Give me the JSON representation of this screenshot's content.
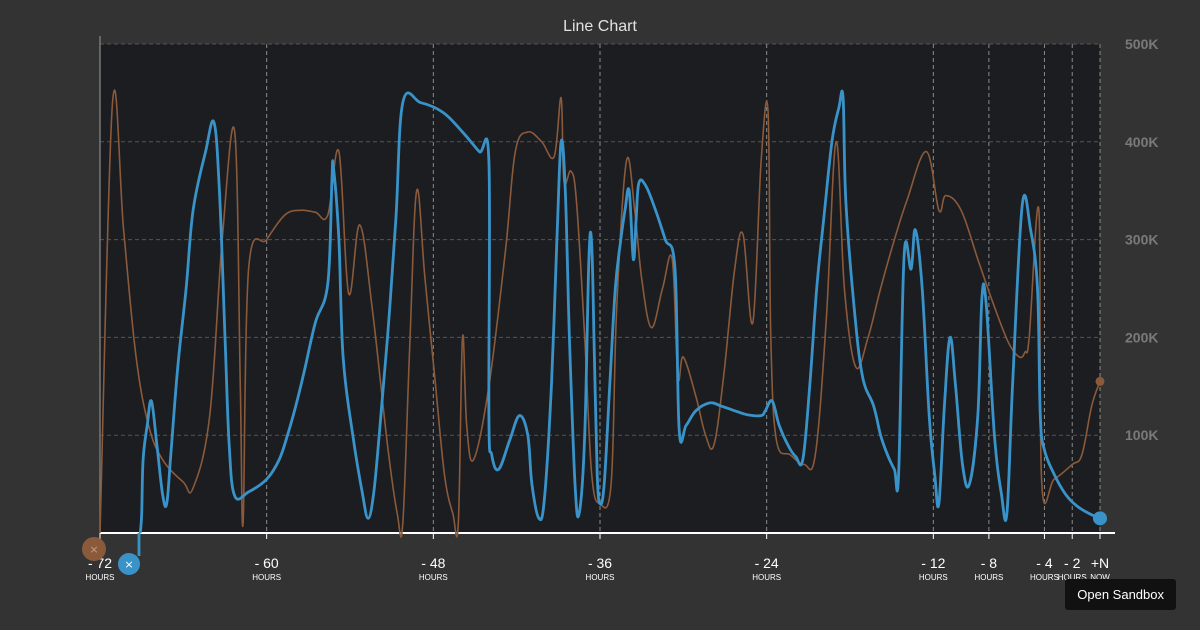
{
  "chart_data": {
    "type": "line",
    "title": "Line Chart",
    "xlabel": "",
    "ylabel": "",
    "xlim": [
      -72,
      0
    ],
    "ylim": [
      0,
      500000
    ],
    "grid": true,
    "y_ticks": [
      {
        "value": 100000,
        "label": "100K"
      },
      {
        "value": 200000,
        "label": "200K"
      },
      {
        "value": 300000,
        "label": "300K"
      },
      {
        "value": 400000,
        "label": "400K"
      },
      {
        "value": 500000,
        "label": "500K"
      }
    ],
    "x_ticks": [
      {
        "value": -72,
        "label": "- 72",
        "sub": "HOURS"
      },
      {
        "value": -60,
        "label": "- 60",
        "sub": "HOURS"
      },
      {
        "value": -48,
        "label": "- 48",
        "sub": "HOURS"
      },
      {
        "value": -36,
        "label": "- 36",
        "sub": "HOURS"
      },
      {
        "value": -24,
        "label": "- 24",
        "sub": "HOURS"
      },
      {
        "value": -12,
        "label": "- 12",
        "sub": "HOURS"
      },
      {
        "value": -8,
        "label": "- 8",
        "sub": "HOURS"
      },
      {
        "value": -4,
        "label": "- 4",
        "sub": "HOURS"
      },
      {
        "value": -2,
        "label": "- 2",
        "sub": "HOURS"
      },
      {
        "value": 0,
        "label": "+N",
        "sub": "NOW"
      }
    ],
    "series": [
      {
        "color": "#8a5a3b",
        "points": [
          [
            -72,
            0
          ],
          [
            -71.1,
            440000
          ],
          [
            -70.3,
            310000
          ],
          [
            -69.4,
            180000
          ],
          [
            -68.5,
            110000
          ],
          [
            -67.5,
            75000
          ],
          [
            -66,
            52000
          ],
          [
            -65.3,
            46000
          ],
          [
            -64.1,
            120000
          ],
          [
            -63.2,
            300000
          ],
          [
            -62.3,
            410000
          ],
          [
            -61.9,
            150000
          ],
          [
            -61.7,
            10000
          ],
          [
            -61.3,
            270000
          ],
          [
            -60,
            300000
          ],
          [
            -58.7,
            325000
          ],
          [
            -57.6,
            330000
          ],
          [
            -56.5,
            328000
          ],
          [
            -55.6,
            325000
          ],
          [
            -54.8,
            390000
          ],
          [
            -54.1,
            245000
          ],
          [
            -53.3,
            315000
          ],
          [
            -52.4,
            230000
          ],
          [
            -51.3,
            90000
          ],
          [
            -50.6,
            20000
          ],
          [
            -50.2,
            10000
          ],
          [
            -49.7,
            190000
          ],
          [
            -49.2,
            350000
          ],
          [
            -48.6,
            260000
          ],
          [
            -47.9,
            160000
          ],
          [
            -47.2,
            60000
          ],
          [
            -46.6,
            20000
          ],
          [
            -46.2,
            10000
          ],
          [
            -45.9,
            200000
          ],
          [
            -45.6,
            110000
          ],
          [
            -45.1,
            75000
          ],
          [
            -44,
            150000
          ],
          [
            -42.8,
            290000
          ],
          [
            -42.1,
            390000
          ],
          [
            -41.2,
            410000
          ],
          [
            -40.2,
            400000
          ],
          [
            -39.3,
            385000
          ],
          [
            -38.8,
            445000
          ],
          [
            -38.6,
            360000
          ],
          [
            -38.1,
            370000
          ],
          [
            -37.7,
            340000
          ],
          [
            -37.1,
            200000
          ],
          [
            -36.6,
            60000
          ],
          [
            -36,
            30000
          ],
          [
            -35.2,
            50000
          ],
          [
            -34.8,
            230000
          ],
          [
            -34.1,
            380000
          ],
          [
            -33.5,
            330000
          ],
          [
            -33,
            260000
          ],
          [
            -32.3,
            210000
          ],
          [
            -31.5,
            250000
          ],
          [
            -30.8,
            280000
          ],
          [
            -30.4,
            160000
          ],
          [
            -30,
            180000
          ],
          [
            -29.1,
            140000
          ],
          [
            -28.4,
            100000
          ],
          [
            -27.8,
            90000
          ],
          [
            -27.1,
            160000
          ],
          [
            -26.3,
            270000
          ],
          [
            -25.7,
            305000
          ],
          [
            -25,
            215000
          ],
          [
            -24.4,
            380000
          ],
          [
            -23.9,
            430000
          ],
          [
            -23.7,
            200000
          ],
          [
            -23.3,
            95000
          ],
          [
            -22.3,
            80000
          ],
          [
            -21.3,
            70000
          ],
          [
            -20.5,
            80000
          ],
          [
            -19.7,
            220000
          ],
          [
            -19,
            400000
          ],
          [
            -18.4,
            250000
          ],
          [
            -17.6,
            170000
          ],
          [
            -16.7,
            200000
          ],
          [
            -15.8,
            250000
          ],
          [
            -14.8,
            300000
          ],
          [
            -13.9,
            340000
          ],
          [
            -12.5,
            390000
          ],
          [
            -11.6,
            330000
          ],
          [
            -11.1,
            345000
          ],
          [
            -10,
            330000
          ],
          [
            -8.8,
            280000
          ],
          [
            -7.7,
            235000
          ],
          [
            -6.6,
            195000
          ],
          [
            -5.8,
            180000
          ],
          [
            -5.4,
            185000
          ],
          [
            -5.1,
            200000
          ],
          [
            -4.4,
            330000
          ],
          [
            -4.2,
            52000
          ],
          [
            -3.3,
            55000
          ],
          [
            -2,
            70000
          ],
          [
            -1.3,
            80000
          ],
          [
            -0.6,
            130000
          ],
          [
            0,
            155000
          ]
        ]
      },
      {
        "color": "#3a93c8",
        "points": [
          [
            -69.1,
            0
          ],
          [
            -69,
            20000
          ],
          [
            -68.9,
            75000
          ],
          [
            -68.6,
            110000
          ],
          [
            -68.3,
            135000
          ],
          [
            -67.9,
            90000
          ],
          [
            -67.5,
            40000
          ],
          [
            -67.2,
            30000
          ],
          [
            -66.9,
            80000
          ],
          [
            -66.4,
            170000
          ],
          [
            -65.8,
            250000
          ],
          [
            -65.3,
            330000
          ],
          [
            -64.4,
            390000
          ],
          [
            -63.8,
            420000
          ],
          [
            -63.4,
            350000
          ],
          [
            -63,
            200000
          ],
          [
            -62.7,
            90000
          ],
          [
            -62.3,
            38000
          ],
          [
            -61.3,
            42000
          ],
          [
            -60,
            55000
          ],
          [
            -59.1,
            75000
          ],
          [
            -58.5,
            100000
          ],
          [
            -57.9,
            130000
          ],
          [
            -57.3,
            165000
          ],
          [
            -56.5,
            215000
          ],
          [
            -55.6,
            255000
          ],
          [
            -55.3,
            360000
          ],
          [
            -55.2,
            375000
          ],
          [
            -54.8,
            300000
          ],
          [
            -54.5,
            180000
          ],
          [
            -53.8,
            100000
          ],
          [
            -53.1,
            40000
          ],
          [
            -52.7,
            15000
          ],
          [
            -52.3,
            40000
          ],
          [
            -51.9,
            100000
          ],
          [
            -51.3,
            200000
          ],
          [
            -50.7,
            320000
          ],
          [
            -50.2,
            440000
          ],
          [
            -48.9,
            440000
          ],
          [
            -47.3,
            430000
          ],
          [
            -45.9,
            410000
          ],
          [
            -44.7,
            390000
          ],
          [
            -44,
            380000
          ],
          [
            -44,
            120000
          ],
          [
            -43.8,
            80000
          ],
          [
            -43.3,
            65000
          ],
          [
            -42.5,
            95000
          ],
          [
            -41.8,
            120000
          ],
          [
            -41.2,
            100000
          ],
          [
            -40.9,
            50000
          ],
          [
            -40.4,
            15000
          ],
          [
            -40,
            35000
          ],
          [
            -39.5,
            150000
          ],
          [
            -39.1,
            300000
          ],
          [
            -38.8,
            400000
          ],
          [
            -38.5,
            350000
          ],
          [
            -38.2,
            200000
          ],
          [
            -37.8,
            50000
          ],
          [
            -37.5,
            20000
          ],
          [
            -37.1,
            100000
          ],
          [
            -36.8,
            280000
          ],
          [
            -36.6,
            295000
          ],
          [
            -36.4,
            180000
          ],
          [
            -36.2,
            60000
          ],
          [
            -36,
            30000
          ],
          [
            -35.7,
            50000
          ],
          [
            -35.3,
            150000
          ],
          [
            -34.9,
            250000
          ],
          [
            -34.5,
            300000
          ],
          [
            -34.2,
            330000
          ],
          [
            -33.9,
            350000
          ],
          [
            -33.6,
            280000
          ],
          [
            -33.4,
            320000
          ],
          [
            -33.2,
            358000
          ],
          [
            -32.7,
            355000
          ],
          [
            -32,
            330000
          ],
          [
            -31.3,
            300000
          ],
          [
            -30.6,
            270000
          ],
          [
            -30.3,
            105000
          ],
          [
            -29.8,
            110000
          ],
          [
            -29.1,
            125000
          ],
          [
            -28.1,
            133000
          ],
          [
            -27.3,
            130000
          ],
          [
            -26.3,
            125000
          ],
          [
            -25.4,
            121000
          ],
          [
            -24.4,
            120000
          ],
          [
            -24.1,
            125000
          ],
          [
            -23.6,
            135000
          ],
          [
            -23.1,
            110000
          ],
          [
            -22.4,
            88000
          ],
          [
            -21.9,
            78000
          ],
          [
            -21.4,
            75000
          ],
          [
            -20.9,
            150000
          ],
          [
            -20.4,
            250000
          ],
          [
            -19.9,
            320000
          ],
          [
            -19.3,
            400000
          ],
          [
            -18.8,
            435000
          ],
          [
            -18.5,
            445000
          ],
          [
            -18.3,
            340000
          ],
          [
            -17.7,
            230000
          ],
          [
            -17.1,
            160000
          ],
          [
            -16.3,
            130000
          ],
          [
            -15.8,
            100000
          ],
          [
            -15.3,
            80000
          ],
          [
            -14.8,
            65000
          ],
          [
            -14.5,
            60000
          ],
          [
            -14.1,
            285000
          ],
          [
            -13.6,
            270000
          ],
          [
            -13.3,
            310000
          ],
          [
            -12.8,
            250000
          ],
          [
            -12.3,
            120000
          ],
          [
            -11.9,
            60000
          ],
          [
            -11.6,
            30000
          ],
          [
            -11.2,
            130000
          ],
          [
            -10.8,
            200000
          ],
          [
            -10.4,
            150000
          ],
          [
            -9.9,
            70000
          ],
          [
            -9.4,
            50000
          ],
          [
            -8.8,
            120000
          ],
          [
            -8.5,
            240000
          ],
          [
            -8.2,
            235000
          ],
          [
            -7.6,
            100000
          ],
          [
            -7.1,
            40000
          ],
          [
            -6.7,
            20000
          ],
          [
            -6.3,
            150000
          ],
          [
            -5.6,
            335000
          ],
          [
            -5,
            310000
          ],
          [
            -4.5,
            250000
          ],
          [
            -4.3,
            120000
          ],
          [
            -4,
            85000
          ],
          [
            -3.3,
            60000
          ],
          [
            -2.5,
            40000
          ],
          [
            -1.7,
            28000
          ],
          [
            -0.8,
            20000
          ],
          [
            0,
            15000
          ]
        ]
      }
    ]
  },
  "legend": {
    "markers": [
      {
        "color": "#8a5a3b",
        "glyph": "×"
      },
      {
        "color": "#3a93c8",
        "glyph": "×"
      }
    ]
  },
  "button": {
    "label": "Open Sandbox"
  }
}
